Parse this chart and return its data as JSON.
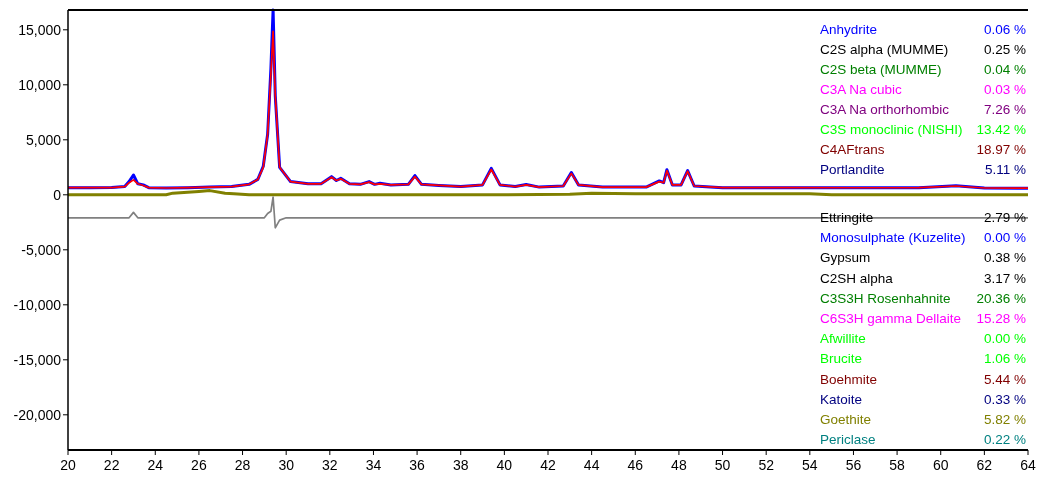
{
  "chart_data": [
    {
      "type": "line",
      "xlim": [
        20,
        64
      ],
      "ylim": [
        -23200,
        16800
      ],
      "xticks": [
        20,
        22,
        24,
        26,
        28,
        30,
        32,
        34,
        36,
        38,
        40,
        42,
        44,
        46,
        48,
        50,
        52,
        54,
        56,
        58,
        60,
        62,
        64
      ],
      "yticks": [
        {
          "value": -20000,
          "label": "-20,000"
        },
        {
          "value": -15000,
          "label": "-15,000"
        },
        {
          "value": -10000,
          "label": "-10,000"
        },
        {
          "value": -5000,
          "label": "-5,000"
        },
        0,
        {
          "value": 5000,
          "label": "5,000"
        },
        {
          "value": 10000,
          "label": "10,000"
        },
        {
          "value": 15000,
          "label": "15,000"
        }
      ],
      "grid": false,
      "series": [
        {
          "color": "#808000",
          "x": [
            20,
            24.5,
            24.8,
            26.0,
            26.5,
            27.2,
            27.6,
            28.3,
            36,
            40,
            43,
            44,
            46,
            54,
            55,
            64
          ],
          "values": [
            0,
            0,
            150,
            300,
            380,
            150,
            100,
            0,
            0,
            0,
            50,
            150,
            100,
            100,
            0,
            0
          ]
        },
        {
          "color": "#808080",
          "x": [
            20,
            22.8,
            23.0,
            23.2,
            29.0,
            29.15,
            29.3,
            29.4,
            29.5,
            29.7,
            30,
            36,
            43,
            64
          ],
          "values": [
            -2090,
            -2090,
            -1600,
            -2090,
            -2090,
            -1700,
            -1500,
            -200,
            -3000,
            -2300,
            -2090,
            -2090,
            -2090,
            -2090
          ]
        },
        {
          "color": "#0000ff",
          "x": [
            20,
            21,
            22,
            22.6,
            22.8,
            23.0,
            23.2,
            23.45,
            23.7,
            24.5,
            25.5,
            26.5,
            27.5,
            28.3,
            28.7,
            28.95,
            29.15,
            29.3,
            29.4,
            29.5,
            29.7,
            30.2,
            31.0,
            31.6,
            32.08,
            32.3,
            32.5,
            32.9,
            33.4,
            33.8,
            34.05,
            34.3,
            34.8,
            35.6,
            35.9,
            36.2,
            37,
            38,
            39.0,
            39.4,
            39.8,
            40.5,
            41.0,
            41.6,
            42.7,
            43.07,
            43.4,
            44.5,
            46.5,
            47.1,
            47.3,
            47.45,
            47.7,
            48.1,
            48.4,
            48.7,
            50,
            53,
            56,
            59,
            60.7,
            62,
            64
          ],
          "values": [
            650,
            650,
            660,
            750,
            1200,
            1800,
            1000,
            900,
            650,
            620,
            650,
            700,
            750,
            950,
            1400,
            2600,
            5500,
            11500,
            16800,
            9000,
            2500,
            1200,
            1000,
            1000,
            1650,
            1300,
            1500,
            1000,
            950,
            1200,
            950,
            1050,
            900,
            950,
            1750,
            950,
            850,
            750,
            900,
            2400,
            900,
            750,
            930,
            700,
            800,
            2030,
            900,
            700,
            700,
            1260,
            1100,
            2280,
            900,
            900,
            2200,
            800,
            650,
            650,
            640,
            650,
            820,
            620,
            600
          ]
        },
        {
          "color": "#ff0000",
          "x": [
            20,
            21,
            22,
            22.6,
            22.8,
            23.0,
            23.2,
            23.45,
            23.7,
            24.5,
            25.5,
            26.5,
            27.5,
            28.3,
            28.7,
            28.95,
            29.15,
            29.3,
            29.4,
            29.5,
            29.7,
            30.2,
            31.0,
            31.6,
            32.08,
            32.3,
            32.5,
            32.9,
            33.4,
            33.8,
            34.05,
            34.3,
            34.8,
            35.6,
            35.9,
            36.2,
            37,
            38,
            39.0,
            39.4,
            39.8,
            40.5,
            41.0,
            41.6,
            42.7,
            43.07,
            43.4,
            44.5,
            46.5,
            47.1,
            47.3,
            47.45,
            47.7,
            48.1,
            48.4,
            48.7,
            50,
            53,
            56,
            59,
            60.7,
            62,
            64
          ],
          "values": [
            650,
            650,
            660,
            750,
            1100,
            1360,
            1000,
            850,
            650,
            620,
            650,
            700,
            750,
            950,
            1400,
            2500,
            5500,
            11000,
            14850,
            9000,
            2500,
            1200,
            1000,
            1000,
            1600,
            1300,
            1450,
            1000,
            950,
            1150,
            950,
            1000,
            900,
            950,
            1650,
            950,
            850,
            750,
            900,
            2300,
            900,
            750,
            900,
            700,
            800,
            1950,
            900,
            700,
            700,
            1200,
            1100,
            2200,
            900,
            900,
            2150,
            800,
            650,
            650,
            640,
            650,
            800,
            620,
            600
          ]
        }
      ]
    },
    {
      "type": "other",
      "categories": [
        "Anhydrite",
        "C2S alpha (MUMME)",
        "C2S beta (MUMME)",
        "C3A Na cubic",
        "C3A Na orthorhombic",
        "C3S monoclinic (NISHI)",
        "C4AFtrans",
        "Portlandite",
        "Ettringite",
        "Monosulphate (Kuzelite)",
        "Gypsum",
        "C2SH alpha",
        "C3S3H Rosenhahnite",
        "C6S3H gamma Dellaite",
        "Afwillite",
        "Brucite",
        "Boehmite",
        "Katoite",
        "Goethite",
        "Periclase"
      ],
      "values": [
        0.06,
        0.25,
        0.04,
        0.03,
        7.26,
        13.42,
        18.97,
        5.11,
        2.79,
        0.0,
        0.38,
        3.17,
        20.36,
        15.28,
        0.0,
        1.06,
        5.44,
        0.33,
        5.82,
        0.22
      ],
      "value_labels": [
        "0.06 %",
        "0.25 %",
        "0.04 %",
        "0.03 %",
        "7.26 %",
        "13.42 %",
        "18.97 %",
        "5.11 %",
        "2.79 %",
        "0.00 %",
        "0.38 %",
        "3.17 %",
        "20.36 %",
        "15.28 %",
        "0.00 %",
        "1.06 %",
        "5.44 %",
        "0.33 %",
        "5.82 %",
        "0.22 %"
      ],
      "colors": [
        "#0000ff",
        "#000000",
        "#008000",
        "#ff00ff",
        "#800080",
        "#00ff00",
        "#800000",
        "#000080",
        "#000000",
        "#0000ff",
        "#000000",
        "#000000",
        "#008000",
        "#ff00ff",
        "#00ff00",
        "#00ff00",
        "#800000",
        "#000080",
        "#808000",
        "#008080"
      ]
    }
  ]
}
